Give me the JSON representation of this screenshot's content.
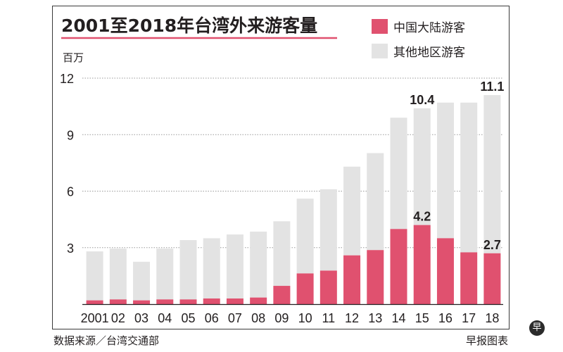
{
  "chart_data": {
    "type": "bar",
    "stacked": true,
    "title": "2001至2018年台湾外来游客量",
    "unit_label": "百万",
    "categories": [
      "2001",
      "02",
      "03",
      "04",
      "05",
      "06",
      "07",
      "08",
      "09",
      "10",
      "11",
      "12",
      "13",
      "14",
      "15",
      "16",
      "17",
      "18"
    ],
    "series": [
      {
        "name": "中国大陆游客",
        "color": "#e0516f",
        "values": [
          0.2,
          0.25,
          0.2,
          0.25,
          0.25,
          0.3,
          0.3,
          0.35,
          0.97,
          1.63,
          1.78,
          2.59,
          2.87,
          3.99,
          4.2,
          3.5,
          2.75,
          2.7
        ]
      },
      {
        "name": "其他地区游客",
        "color": "#e3e3e3",
        "values": [
          2.6,
          2.7,
          2.05,
          2.7,
          3.15,
          3.2,
          3.4,
          3.5,
          3.43,
          3.97,
          4.32,
          4.71,
          5.15,
          5.91,
          6.2,
          7.2,
          7.95,
          8.4
        ]
      }
    ],
    "ylim": [
      0,
      12
    ],
    "yticks": [
      3,
      6,
      9,
      12
    ],
    "grid": true,
    "legend_position": "top-right",
    "data_labels": [
      {
        "category": "15",
        "series": "total",
        "text": "10.4"
      },
      {
        "category": "15",
        "series": "中国大陆游客",
        "text": "4.2"
      },
      {
        "category": "18",
        "series": "total",
        "text": "11.1"
      },
      {
        "category": "18",
        "series": "中国大陆游客",
        "text": "2.7"
      }
    ]
  },
  "footer": {
    "source": "数据来源／台湾交通部",
    "credit": "早报图表"
  },
  "logo": {
    "glyph": "早"
  }
}
